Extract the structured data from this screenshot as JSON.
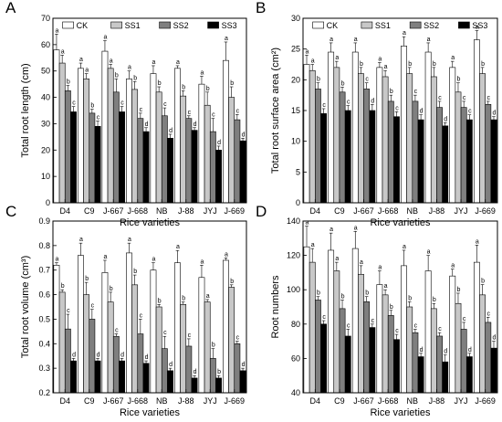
{
  "colors": {
    "CK": "#ffffff",
    "SS1": "#c8c8c8",
    "SS2": "#7f7f7f",
    "SS3": "#000000"
  },
  "legend": [
    "CK",
    "SS1",
    "SS2",
    "SS3"
  ],
  "categories": [
    "D4",
    "C9",
    "J-667",
    "J-668",
    "NB",
    "J-88",
    "JYJ",
    "J-669"
  ],
  "chart_data": [
    {
      "panel": "A",
      "type": "bar",
      "ylabel": "Total root length (cm)",
      "xlabel": "Rice varieties",
      "ylim": [
        0,
        70
      ],
      "yticks": [
        0,
        10,
        20,
        30,
        40,
        50,
        60,
        70
      ],
      "ytick_labels": [
        "0",
        "10",
        "20",
        "30",
        "40",
        "50",
        "60",
        "70"
      ],
      "legend_position": "top",
      "categories": [
        "D4",
        "C9",
        "J-667",
        "J-668",
        "NB",
        "J-88",
        "JYJ",
        "J-669"
      ],
      "series": [
        {
          "name": "CK",
          "values": [
            58,
            51,
            57.5,
            47,
            49,
            51,
            45,
            54
          ],
          "errors": [
            6,
            2,
            4,
            3,
            3,
            1,
            3,
            7
          ],
          "letters": [
            "a",
            "a",
            "a",
            "a",
            "a",
            "a",
            "a",
            "a"
          ]
        },
        {
          "name": "SS1",
          "values": [
            53,
            47,
            51,
            43,
            42,
            40.5,
            37,
            40
          ],
          "errors": [
            3,
            2,
            1.5,
            3,
            2,
            2,
            5,
            4
          ],
          "letters": [
            "a",
            "a",
            "a",
            "b",
            "b",
            "b",
            "b",
            "b"
          ]
        },
        {
          "name": "SS2",
          "values": [
            42.5,
            34,
            42,
            32,
            33,
            32,
            27,
            31.5
          ],
          "errors": [
            2,
            1.5,
            5,
            2,
            3,
            1,
            5,
            2
          ],
          "letters": [
            "b",
            "b",
            "b",
            "c",
            "c",
            "c",
            "c",
            "c"
          ]
        },
        {
          "name": "SS3",
          "values": [
            34.5,
            29,
            34.5,
            27,
            24.5,
            27.5,
            20,
            23.5
          ],
          "errors": [
            2,
            2,
            2,
            1.5,
            1.5,
            1,
            1.5,
            1
          ],
          "letters": [
            "c",
            "c",
            "c",
            "d",
            "d",
            "d",
            "d",
            "d"
          ]
        }
      ]
    },
    {
      "panel": "B",
      "type": "bar",
      "ylabel": "Total root surface area (cm²)",
      "xlabel": "Rice varieties",
      "ylim": [
        0,
        30
      ],
      "yticks": [
        0,
        5,
        10,
        15,
        20,
        25,
        30
      ],
      "ytick_labels": [
        "0",
        "5",
        "10",
        "15",
        "20",
        "25",
        "30"
      ],
      "legend_position": "top",
      "categories": [
        "D4",
        "C9",
        "J-667",
        "J-668",
        "NB",
        "J-88",
        "JYJ",
        "J-669"
      ],
      "series": [
        {
          "name": "CK",
          "values": [
            22.5,
            24.5,
            24.5,
            22,
            25.5,
            24.5,
            22,
            26.5
          ],
          "errors": [
            1.5,
            1.5,
            1.5,
            0.8,
            1.5,
            1.5,
            1,
            1.5
          ],
          "letters": [
            "a",
            "a",
            "a",
            "a",
            "a",
            "a",
            "a",
            "a"
          ]
        },
        {
          "name": "SS1",
          "values": [
            21.5,
            22,
            21,
            20.5,
            21,
            20.5,
            18,
            21
          ],
          "errors": [
            1,
            1,
            1,
            1,
            1,
            1.5,
            1.5,
            1
          ],
          "letters": [
            "a",
            "a",
            "b",
            "a",
            "b",
            "b",
            "b",
            "b"
          ]
        },
        {
          "name": "SS2",
          "values": [
            18.5,
            18,
            18.5,
            16.5,
            16.5,
            15.5,
            15.5,
            16
          ],
          "errors": [
            1,
            0.8,
            1,
            1,
            1,
            1,
            1,
            0.5
          ],
          "letters": [
            "b",
            "b",
            "c",
            "b",
            "c",
            "c",
            "c",
            "c"
          ]
        },
        {
          "name": "SS3",
          "values": [
            14.5,
            15,
            15,
            14,
            13.5,
            12.5,
            13.5,
            13.5
          ],
          "errors": [
            0.8,
            0.8,
            1,
            0.8,
            0.8,
            0.5,
            0.8,
            0.5
          ],
          "letters": [
            "c",
            "c",
            "d",
            "c",
            "d",
            "d",
            "c",
            "d"
          ]
        }
      ]
    },
    {
      "panel": "C",
      "type": "bar",
      "ylabel": "Total root volume (cm³)",
      "xlabel": "Rice varieties",
      "ylim": [
        0.2,
        0.9
      ],
      "yticks": [
        0.2,
        0.3,
        0.4,
        0.5,
        0.6,
        0.7,
        0.8,
        0.9
      ],
      "ytick_labels": [
        "0.2",
        "0.3",
        "0.4",
        "0.5",
        "0.6",
        "0.7",
        "0.8",
        "0.9"
      ],
      "legend_position": "none",
      "categories": [
        "D4",
        "C9",
        "J-667",
        "J-668",
        "NB",
        "J-88",
        "JYJ",
        "J-669"
      ],
      "series": [
        {
          "name": "CK",
          "values": [
            0.72,
            0.76,
            0.69,
            0.77,
            0.7,
            0.73,
            0.67,
            0.74
          ],
          "errors": [
            0.01,
            0.05,
            0.05,
            0.04,
            0.03,
            0.05,
            0.05,
            0.01
          ],
          "letters": [
            "a",
            "a",
            "a",
            "a",
            "a",
            "a",
            "a",
            "a"
          ]
        },
        {
          "name": "SS1",
          "values": [
            0.61,
            0.6,
            0.57,
            0.64,
            0.55,
            0.56,
            0.57,
            0.63
          ],
          "errors": [
            0.01,
            0.05,
            0.04,
            0.04,
            0.01,
            0.01,
            0.01,
            0.01
          ],
          "letters": [
            "b",
            "b",
            "b",
            "b",
            "b",
            "b",
            "a",
            "b"
          ]
        },
        {
          "name": "SS2",
          "values": [
            0.46,
            0.5,
            0.43,
            0.44,
            0.38,
            0.39,
            0.34,
            0.4
          ],
          "errors": [
            0.06,
            0.04,
            0.01,
            0.06,
            0.05,
            0.03,
            0.04,
            0.01
          ],
          "letters": [
            "c",
            "c",
            "c",
            "c",
            "c",
            "c",
            "b",
            "c"
          ]
        },
        {
          "name": "SS3",
          "values": [
            0.33,
            0.33,
            0.33,
            0.32,
            0.29,
            0.26,
            0.26,
            0.29
          ],
          "errors": [
            0.01,
            0.01,
            0.01,
            0.01,
            0.01,
            0.01,
            0.01,
            0.01
          ],
          "letters": [
            "d",
            "d",
            "d",
            "d",
            "d",
            "d",
            "b",
            "d"
          ]
        }
      ]
    },
    {
      "panel": "D",
      "type": "bar",
      "ylabel": "Root numbers",
      "xlabel": "Rice varieties",
      "ylim": [
        40,
        140
      ],
      "yticks": [
        40,
        60,
        80,
        100,
        120,
        140
      ],
      "ytick_labels": [
        "40",
        "60",
        "80",
        "100",
        "120",
        "140"
      ],
      "legend_position": "none",
      "categories": [
        "D4",
        "C9",
        "J-667",
        "J-668",
        "NB",
        "J-88",
        "JYJ",
        "J-669"
      ],
      "series": [
        {
          "name": "CK",
          "values": [
            125,
            123,
            124,
            103,
            114,
            111,
            108,
            116
          ],
          "errors": [
            12,
            10,
            10,
            8,
            9,
            9,
            4,
            10
          ],
          "letters": [
            "a",
            "a",
            "a",
            "a",
            "a",
            "a",
            "a",
            "a"
          ]
        },
        {
          "name": "SS1",
          "values": [
            116,
            111,
            109,
            97,
            90,
            89,
            92,
            97
          ],
          "errors": [
            8,
            5,
            5,
            3,
            3,
            3,
            6,
            6
          ],
          "letters": [
            "a",
            "a",
            "a",
            "a",
            "b",
            "b",
            "b",
            "b"
          ]
        },
        {
          "name": "SS2",
          "values": [
            94,
            89,
            93,
            85,
            75,
            73,
            77,
            81
          ],
          "errors": [
            2,
            5,
            3,
            3,
            2,
            2,
            4,
            3
          ],
          "letters": [
            "b",
            "b",
            "b",
            "b",
            "c",
            "c",
            "c",
            "c"
          ]
        },
        {
          "name": "SS3",
          "values": [
            80,
            73,
            78,
            71,
            61,
            58,
            61,
            66
          ],
          "errors": [
            2,
            4,
            2,
            3,
            2,
            4,
            2,
            4
          ],
          "letters": [
            "c",
            "c",
            "c",
            "c",
            "d",
            "d",
            "d",
            "d"
          ]
        }
      ]
    }
  ]
}
